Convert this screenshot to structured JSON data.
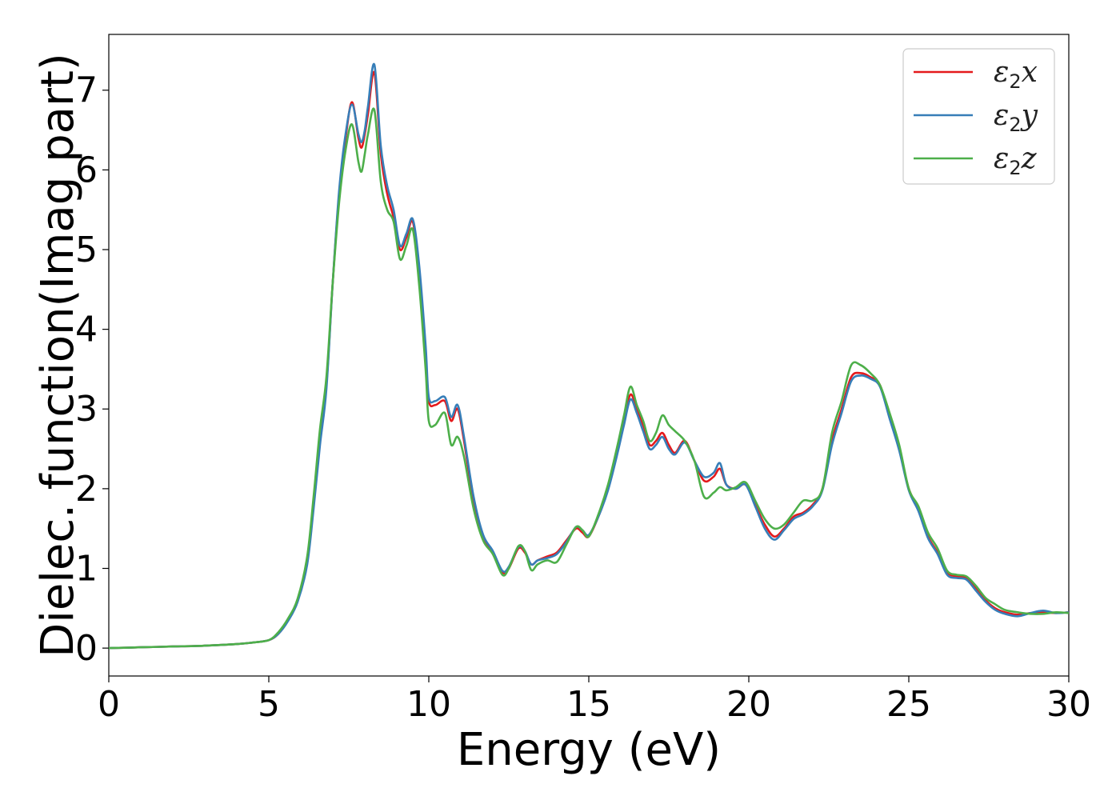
{
  "chart_data": {
    "type": "line",
    "xlabel": "Energy (eV)",
    "ylabel": "Dielec. function(Imag part)",
    "xlim": [
      0,
      30
    ],
    "ylim": [
      -0.35,
      7.7
    ],
    "xticks": [
      0,
      5,
      10,
      15,
      20,
      25,
      30
    ],
    "yticks": [
      0,
      1,
      2,
      3,
      4,
      5,
      6,
      7
    ],
    "grid": false,
    "legend": {
      "placement": "top-right"
    },
    "series": [
      {
        "name": "ε2x",
        "legend_symbol": "ε",
        "legend_sub": "2",
        "legend_var": "x",
        "color": "#e41a1c",
        "x": [
          0,
          1,
          2,
          3,
          4,
          4.5,
          5,
          5.3,
          5.6,
          5.9,
          6.2,
          6.4,
          6.6,
          6.8,
          7.0,
          7.2,
          7.4,
          7.6,
          7.8,
          7.9,
          8.0,
          8.1,
          8.3,
          8.5,
          8.7,
          8.9,
          9.1,
          9.3,
          9.5,
          9.7,
          9.9,
          10.0,
          10.2,
          10.5,
          10.7,
          10.9,
          11.1,
          11.4,
          11.7,
          12.0,
          12.3,
          12.5,
          12.8,
          13.0,
          13.2,
          13.4,
          13.7,
          14.0,
          14.3,
          14.6,
          14.8,
          15.0,
          15.3,
          15.6,
          15.9,
          16.1,
          16.3,
          16.5,
          16.7,
          16.9,
          17.1,
          17.3,
          17.5,
          17.7,
          18.0,
          18.3,
          18.6,
          18.9,
          19.1,
          19.3,
          19.6,
          19.9,
          20.2,
          20.5,
          20.8,
          21.1,
          21.4,
          21.7,
          22.0,
          22.3,
          22.6,
          22.9,
          23.2,
          23.5,
          23.8,
          24.1,
          24.4,
          24.7,
          25.0,
          25.3,
          25.6,
          25.9,
          26.2,
          26.5,
          26.8,
          27.1,
          27.4,
          27.7,
          28.0,
          28.4,
          28.8,
          29.2,
          29.6,
          30.0
        ],
        "y": [
          0.0,
          0.01,
          0.02,
          0.03,
          0.05,
          0.07,
          0.1,
          0.18,
          0.35,
          0.6,
          1.1,
          1.8,
          2.6,
          3.3,
          4.6,
          5.7,
          6.4,
          6.85,
          6.4,
          6.28,
          6.45,
          6.7,
          7.22,
          6.2,
          5.7,
          5.4,
          5.0,
          5.15,
          5.35,
          4.7,
          3.7,
          3.1,
          3.05,
          3.1,
          2.85,
          3.0,
          2.6,
          1.85,
          1.4,
          1.2,
          0.95,
          1.0,
          1.25,
          1.2,
          1.05,
          1.1,
          1.15,
          1.2,
          1.35,
          1.5,
          1.45,
          1.4,
          1.65,
          2.0,
          2.5,
          2.85,
          3.18,
          3.0,
          2.8,
          2.55,
          2.6,
          2.7,
          2.55,
          2.45,
          2.6,
          2.35,
          2.1,
          2.15,
          2.25,
          2.05,
          2.0,
          2.05,
          1.8,
          1.55,
          1.4,
          1.5,
          1.65,
          1.7,
          1.8,
          2.0,
          2.6,
          3.0,
          3.4,
          3.45,
          3.4,
          3.3,
          2.9,
          2.5,
          2.0,
          1.75,
          1.4,
          1.2,
          0.95,
          0.9,
          0.88,
          0.75,
          0.6,
          0.5,
          0.45,
          0.42,
          0.44,
          0.45,
          0.44,
          0.45
        ]
      },
      {
        "name": "ε2y",
        "legend_symbol": "ε",
        "legend_sub": "2",
        "legend_var": "y",
        "color": "#377eb8",
        "x": [
          0,
          1,
          2,
          3,
          4,
          4.5,
          5,
          5.3,
          5.6,
          5.9,
          6.2,
          6.4,
          6.6,
          6.8,
          7.0,
          7.2,
          7.4,
          7.6,
          7.8,
          7.9,
          8.0,
          8.1,
          8.3,
          8.5,
          8.7,
          8.9,
          9.1,
          9.3,
          9.5,
          9.7,
          9.9,
          10.0,
          10.2,
          10.5,
          10.7,
          10.9,
          11.1,
          11.4,
          11.7,
          12.0,
          12.3,
          12.5,
          12.8,
          13.0,
          13.2,
          13.4,
          13.7,
          14.0,
          14.3,
          14.6,
          14.8,
          15.0,
          15.3,
          15.6,
          15.9,
          16.1,
          16.3,
          16.5,
          16.7,
          16.9,
          17.1,
          17.3,
          17.5,
          17.7,
          18.0,
          18.3,
          18.6,
          18.9,
          19.1,
          19.3,
          19.6,
          19.9,
          20.2,
          20.5,
          20.8,
          21.1,
          21.4,
          21.7,
          22.0,
          22.3,
          22.6,
          22.9,
          23.2,
          23.5,
          23.8,
          24.1,
          24.4,
          24.7,
          25.0,
          25.3,
          25.6,
          25.9,
          26.2,
          26.5,
          26.8,
          27.1,
          27.4,
          27.7,
          28.0,
          28.4,
          28.8,
          29.2,
          29.6,
          30.0
        ],
        "y": [
          0.0,
          0.01,
          0.02,
          0.03,
          0.05,
          0.07,
          0.1,
          0.18,
          0.34,
          0.58,
          1.05,
          1.75,
          2.55,
          3.25,
          4.6,
          5.75,
          6.45,
          6.82,
          6.45,
          6.35,
          6.5,
          6.8,
          7.32,
          6.3,
          5.8,
          5.5,
          5.05,
          5.2,
          5.38,
          4.8,
          3.8,
          3.15,
          3.1,
          3.15,
          2.9,
          3.05,
          2.65,
          1.9,
          1.42,
          1.22,
          0.97,
          1.02,
          1.27,
          1.22,
          1.05,
          1.1,
          1.13,
          1.18,
          1.33,
          1.52,
          1.48,
          1.42,
          1.65,
          1.98,
          2.45,
          2.8,
          3.12,
          2.95,
          2.72,
          2.5,
          2.55,
          2.65,
          2.5,
          2.43,
          2.58,
          2.35,
          2.15,
          2.2,
          2.32,
          2.05,
          2.0,
          2.05,
          1.78,
          1.5,
          1.36,
          1.48,
          1.62,
          1.68,
          1.78,
          1.98,
          2.55,
          2.95,
          3.35,
          3.42,
          3.38,
          3.28,
          2.88,
          2.48,
          1.98,
          1.72,
          1.38,
          1.18,
          0.92,
          0.88,
          0.86,
          0.72,
          0.58,
          0.48,
          0.43,
          0.4,
          0.44,
          0.47,
          0.44,
          0.45
        ]
      },
      {
        "name": "ε2z",
        "legend_symbol": "ε",
        "legend_sub": "2",
        "legend_var": "z",
        "color": "#4daf4a",
        "x": [
          0,
          1,
          2,
          3,
          4,
          4.5,
          5,
          5.3,
          5.6,
          5.9,
          6.2,
          6.4,
          6.6,
          6.8,
          7.0,
          7.2,
          7.4,
          7.6,
          7.8,
          7.9,
          8.0,
          8.1,
          8.3,
          8.5,
          8.7,
          8.9,
          9.1,
          9.3,
          9.5,
          9.7,
          9.9,
          10.0,
          10.2,
          10.5,
          10.7,
          10.9,
          11.1,
          11.4,
          11.7,
          12.0,
          12.3,
          12.5,
          12.8,
          13.0,
          13.2,
          13.4,
          13.7,
          14.0,
          14.3,
          14.6,
          14.8,
          15.0,
          15.3,
          15.6,
          15.9,
          16.1,
          16.3,
          16.5,
          16.7,
          16.9,
          17.1,
          17.3,
          17.5,
          17.7,
          18.0,
          18.3,
          18.6,
          18.9,
          19.1,
          19.3,
          19.6,
          19.9,
          20.2,
          20.5,
          20.8,
          21.1,
          21.4,
          21.7,
          22.0,
          22.3,
          22.6,
          22.9,
          23.2,
          23.5,
          23.8,
          24.1,
          24.4,
          24.7,
          25.0,
          25.3,
          25.6,
          25.9,
          26.2,
          26.5,
          26.8,
          27.1,
          27.4,
          27.7,
          28.0,
          28.4,
          28.8,
          29.2,
          29.6,
          30.0
        ],
        "y": [
          0.0,
          0.01,
          0.02,
          0.03,
          0.05,
          0.07,
          0.1,
          0.2,
          0.37,
          0.62,
          1.15,
          1.9,
          2.75,
          3.4,
          4.6,
          5.6,
          6.25,
          6.57,
          6.1,
          5.98,
          6.2,
          6.45,
          6.75,
          5.85,
          5.5,
          5.35,
          4.88,
          5.05,
          5.25,
          4.55,
          3.5,
          2.85,
          2.8,
          2.95,
          2.55,
          2.65,
          2.4,
          1.75,
          1.35,
          1.18,
          0.92,
          1.0,
          1.28,
          1.22,
          0.98,
          1.05,
          1.1,
          1.08,
          1.3,
          1.52,
          1.48,
          1.4,
          1.68,
          2.05,
          2.55,
          2.92,
          3.28,
          3.05,
          2.85,
          2.6,
          2.7,
          2.92,
          2.8,
          2.72,
          2.6,
          2.35,
          1.9,
          1.95,
          2.02,
          1.98,
          2.02,
          2.08,
          1.85,
          1.62,
          1.5,
          1.55,
          1.7,
          1.85,
          1.85,
          2.0,
          2.7,
          3.1,
          3.55,
          3.55,
          3.45,
          3.3,
          2.95,
          2.55,
          2.0,
          1.78,
          1.45,
          1.25,
          0.97,
          0.92,
          0.9,
          0.78,
          0.63,
          0.55,
          0.48,
          0.45,
          0.43,
          0.43,
          0.45,
          0.44
        ]
      }
    ]
  }
}
